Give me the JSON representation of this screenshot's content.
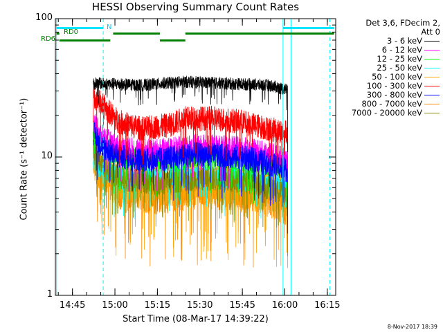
{
  "chart_data": {
    "type": "line",
    "title": "HESSI Observing Summary Count Rates",
    "xlabel": "Start Time (08-Mar-17 14:39:22)",
    "ylabel": "Count Rate (s⁻¹ detector⁻¹)",
    "yscale": "log",
    "ylim": [
      1,
      100
    ],
    "xlim_minutes_after_start": [
      -0.4,
      98.6
    ],
    "y_ticks": [
      {
        "v": 1,
        "label": "1"
      },
      {
        "v": 10,
        "label": "10"
      },
      {
        "v": 100,
        "label": "100"
      }
    ],
    "x_ticks": [
      {
        "m": 5.63,
        "label": "14:45"
      },
      {
        "m": 20.63,
        "label": "15:00"
      },
      {
        "m": 35.63,
        "label": "15:15"
      },
      {
        "m": 50.63,
        "label": "15:30"
      },
      {
        "m": 65.63,
        "label": "15:45"
      },
      {
        "m": 80.63,
        "label": "16:00"
      },
      {
        "m": 95.63,
        "label": "16:15"
      }
    ],
    "grid": false,
    "legend_position": "right",
    "legend_header": [
      "Det 3,6, FDecim 2,",
      "Att 0"
    ],
    "series": [
      {
        "name": "3 - 6 keV",
        "color": "#000000",
        "points": [
          [
            13.0,
            34
          ],
          [
            16.0,
            34
          ],
          [
            30.0,
            33
          ],
          [
            45.0,
            35
          ],
          [
            60.0,
            34
          ],
          [
            75.0,
            33
          ],
          [
            80.5,
            31
          ],
          [
            81.6,
            31
          ]
        ]
      },
      {
        "name": "6 - 12 keV",
        "color": "#ff00ff",
        "points": [
          [
            13.0,
            18
          ],
          [
            16.0,
            14
          ],
          [
            22.0,
            11.5
          ],
          [
            35.0,
            11
          ],
          [
            50.0,
            12
          ],
          [
            65.0,
            11.5
          ],
          [
            75.0,
            10.5
          ],
          [
            81.6,
            9.5
          ]
        ]
      },
      {
        "name": "12 - 25 keV",
        "color": "#00ff00",
        "points": [
          [
            13.0,
            16
          ],
          [
            16.0,
            12.5
          ],
          [
            22.0,
            10
          ],
          [
            35.0,
            9.5
          ],
          [
            50.0,
            10
          ],
          [
            65.0,
            9.5
          ],
          [
            75.0,
            9
          ],
          [
            81.6,
            8.5
          ]
        ]
      },
      {
        "name": "25 - 50 keV",
        "color": "#00ffff",
        "points": [
          [
            13.0,
            10
          ],
          [
            16.0,
            8
          ],
          [
            22.0,
            7
          ],
          [
            35.0,
            7
          ],
          [
            50.0,
            7.2
          ],
          [
            65.0,
            7
          ],
          [
            75.0,
            6.5
          ],
          [
            81.6,
            6
          ]
        ]
      },
      {
        "name": "50 - 100 keV",
        "color": "#ffa500",
        "points": [
          [
            13.0,
            9.5
          ],
          [
            16.0,
            8
          ],
          [
            22.0,
            6.5
          ],
          [
            35.0,
            6.3
          ],
          [
            50.0,
            6.5
          ],
          [
            65.0,
            6.4
          ],
          [
            75.0,
            5.8
          ],
          [
            81.6,
            5.5
          ]
        ]
      },
      {
        "name": "100 - 300 keV",
        "color": "#ff0000",
        "points": [
          [
            13.0,
            28
          ],
          [
            16.0,
            24
          ],
          [
            22.0,
            18
          ],
          [
            30.0,
            16
          ],
          [
            40.0,
            17
          ],
          [
            45.0,
            19
          ],
          [
            55.0,
            19
          ],
          [
            65.0,
            18
          ],
          [
            75.0,
            16
          ],
          [
            81.6,
            15
          ]
        ]
      },
      {
        "name": "300 - 800 keV",
        "color": "#0000ff",
        "points": [
          [
            13.0,
            15
          ],
          [
            16.0,
            12
          ],
          [
            22.0,
            10
          ],
          [
            35.0,
            9.5
          ],
          [
            50.0,
            10.5
          ],
          [
            65.0,
            10
          ],
          [
            75.0,
            9
          ],
          [
            81.6,
            8
          ]
        ]
      },
      {
        "name": "800 - 7000 keV",
        "color": "#ff8c00",
        "points": [
          [
            13.0,
            10
          ],
          [
            16.0,
            8
          ],
          [
            22.0,
            6
          ],
          [
            35.0,
            5.5
          ],
          [
            50.0,
            6
          ],
          [
            65.0,
            5.8
          ],
          [
            75.0,
            5.2
          ],
          [
            81.6,
            4.5
          ]
        ]
      },
      {
        "name": "7000 - 20000 keV",
        "color": "#8b8b00",
        "points": [
          [
            13.0,
            11
          ],
          [
            16.0,
            9
          ],
          [
            22.0,
            7
          ],
          [
            35.0,
            6.5
          ],
          [
            50.0,
            7
          ],
          [
            65.0,
            6.8
          ],
          [
            75.0,
            6
          ],
          [
            81.6,
            5.5
          ]
        ]
      }
    ],
    "flag_labels": {
      "n": "N",
      "rd0": "RD0",
      "rd6": "RD6"
    },
    "flags": {
      "n_cyan": [
        [
          0.0,
          16.5
        ],
        [
          80.0,
          98.0
        ]
      ],
      "rd0_green": [
        [
          0.0,
          1.0
        ],
        [
          20.0,
          36.5
        ],
        [
          45.5,
          98.0
        ]
      ],
      "rd6_green": [
        [
          1.0,
          19.0
        ],
        [
          36.5,
          45.5
        ]
      ]
    },
    "vlines": [
      {
        "m": 0.0,
        "style": "solid",
        "color": "#00ffff"
      },
      {
        "m": 16.5,
        "style": "dashed",
        "color": "#00ffff"
      },
      {
        "m": 80.0,
        "style": "solid",
        "color": "#00ffff"
      },
      {
        "m": 82.8,
        "style": "solid",
        "color": "#00ffff"
      },
      {
        "m": 96.5,
        "style": "dashed",
        "color": "#00ffff"
      }
    ]
  },
  "timestamp": "8-Nov-2017 18:39"
}
